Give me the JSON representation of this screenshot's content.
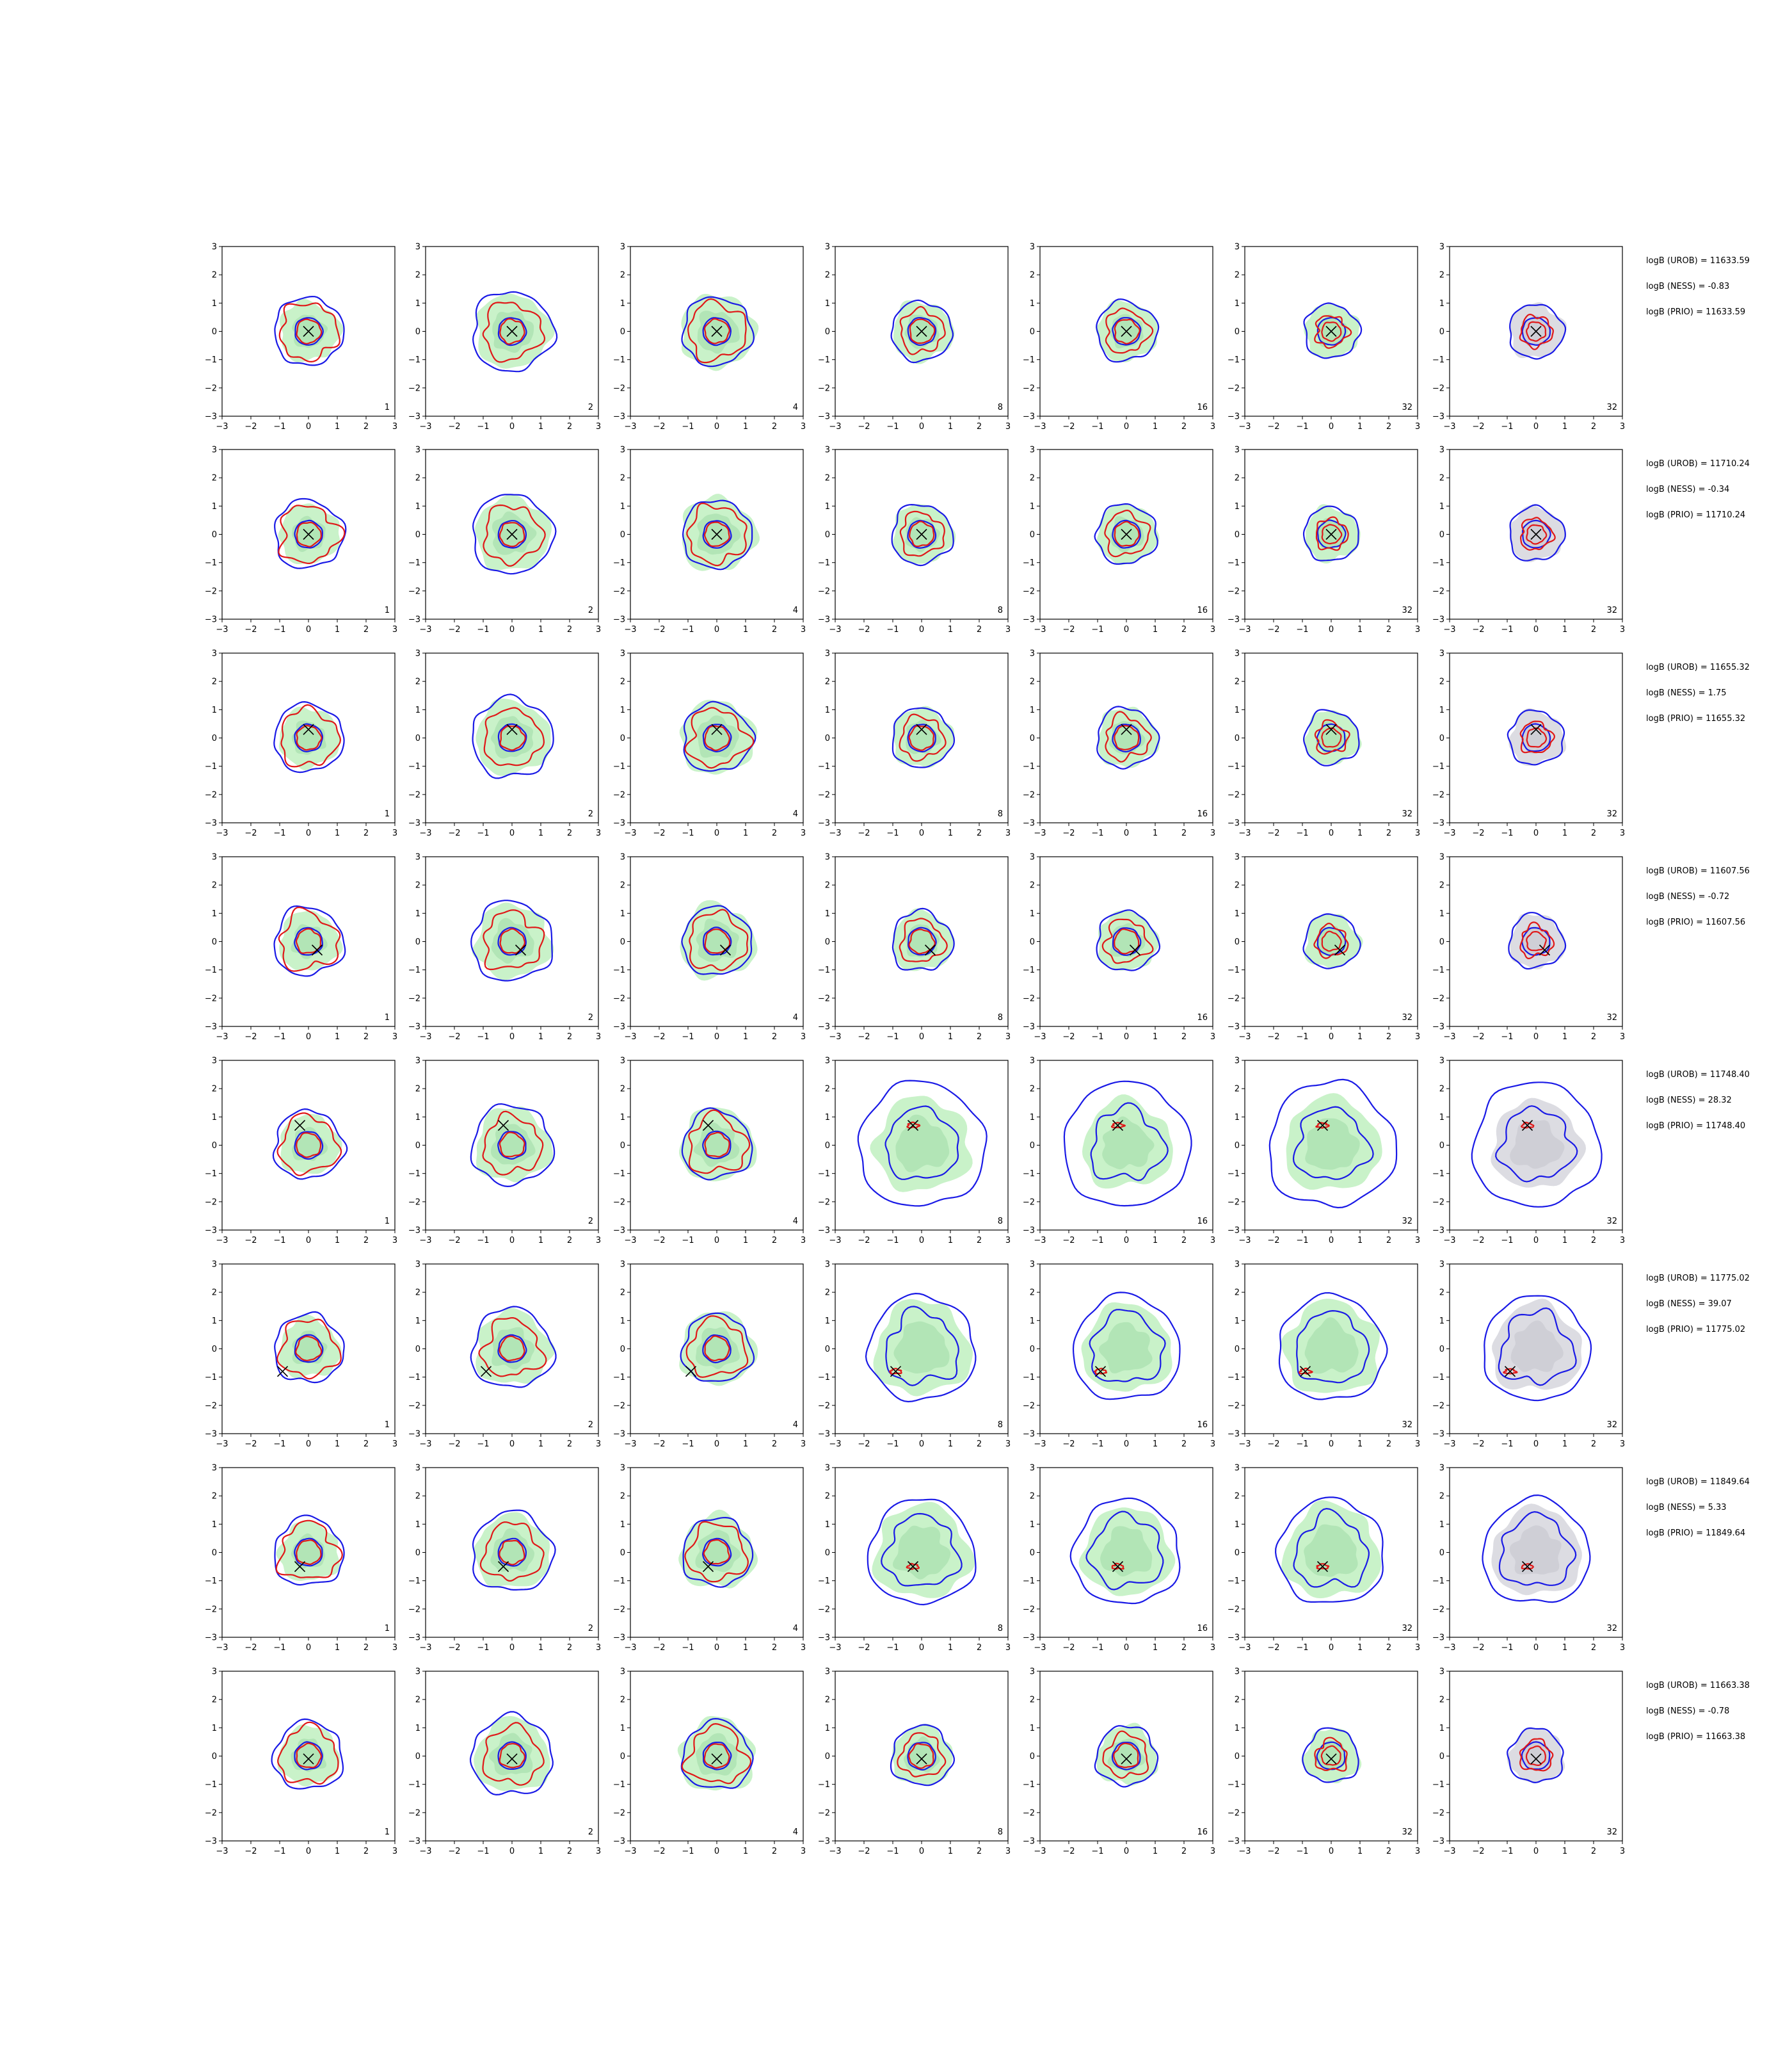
{
  "figure": {
    "rows": 8,
    "cols": 7,
    "axis_ticks": [
      "−3",
      "−2",
      "−1",
      "0",
      "1",
      "2",
      "3"
    ],
    "colors": {
      "fill_green": "#c9f2c9",
      "fill_green_dark": "#9fdba5",
      "fill_grey": "#dcdce2",
      "fill_grey_dark": "#c4c4cc",
      "contour_blue": "#1a1ae6",
      "contour_red": "#e01818",
      "marker": "#000000"
    }
  },
  "chart_data": {
    "type": "contour-grid",
    "xlim": [
      -3,
      3
    ],
    "ylim": [
      -3,
      3
    ],
    "x_ticks": [
      -3,
      -2,
      -1,
      0,
      1,
      2,
      3
    ],
    "y_ticks": [
      -3,
      -2,
      -1,
      0,
      1,
      2,
      3
    ],
    "column_labels": [
      "1",
      "2",
      "4",
      "8",
      "16",
      "32",
      "32"
    ],
    "rows": [
      {
        "marker": [
          0.0,
          0.0
        ],
        "stats": [
          "logB (UROB) = 11633.59",
          "logB (NESS) = -0.83",
          "logB (PRIO) = 11633.59"
        ]
      },
      {
        "marker": [
          0.0,
          0.0
        ],
        "stats": [
          "logB (UROB) = 11710.24",
          "logB (NESS) = -0.34",
          "logB (PRIO) = 11710.24"
        ]
      },
      {
        "marker": [
          0.0,
          0.3
        ],
        "stats": [
          "logB (UROB) = 11655.32",
          "logB (NESS) = 1.75",
          "logB (PRIO) = 11655.32"
        ]
      },
      {
        "marker": [
          0.3,
          -0.3
        ],
        "stats": [
          "logB (UROB) = 11607.56",
          "logB (NESS) = -0.72",
          "logB (PRIO) = 11607.56"
        ]
      },
      {
        "marker": [
          -0.3,
          0.7
        ],
        "stats": [
          "logB (UROB) = 11748.40",
          "logB (NESS) = 28.32",
          "logB (PRIO) = 11748.40"
        ]
      },
      {
        "marker": [
          -0.9,
          -0.8
        ],
        "stats": [
          "logB (UROB) = 11775.02",
          "logB (NESS) = 39.07",
          "logB (PRIO) = 11775.02"
        ]
      },
      {
        "marker": [
          -0.3,
          -0.5
        ],
        "stats": [
          "logB (UROB) = 11849.64",
          "logB (NESS) = 5.33",
          "logB (PRIO) = 11849.64"
        ]
      },
      {
        "marker": [
          0.0,
          -0.1
        ],
        "stats": [
          "logB (UROB) = 11663.38",
          "logB (NESS) = -0.78",
          "logB (PRIO) = 11663.38"
        ]
      }
    ],
    "shaded_region": {
      "green_columns": [
        0,
        1,
        2,
        3,
        4,
        5
      ],
      "grey_column": 6
    },
    "wide_contour_rows": [
      4,
      5,
      6
    ]
  }
}
